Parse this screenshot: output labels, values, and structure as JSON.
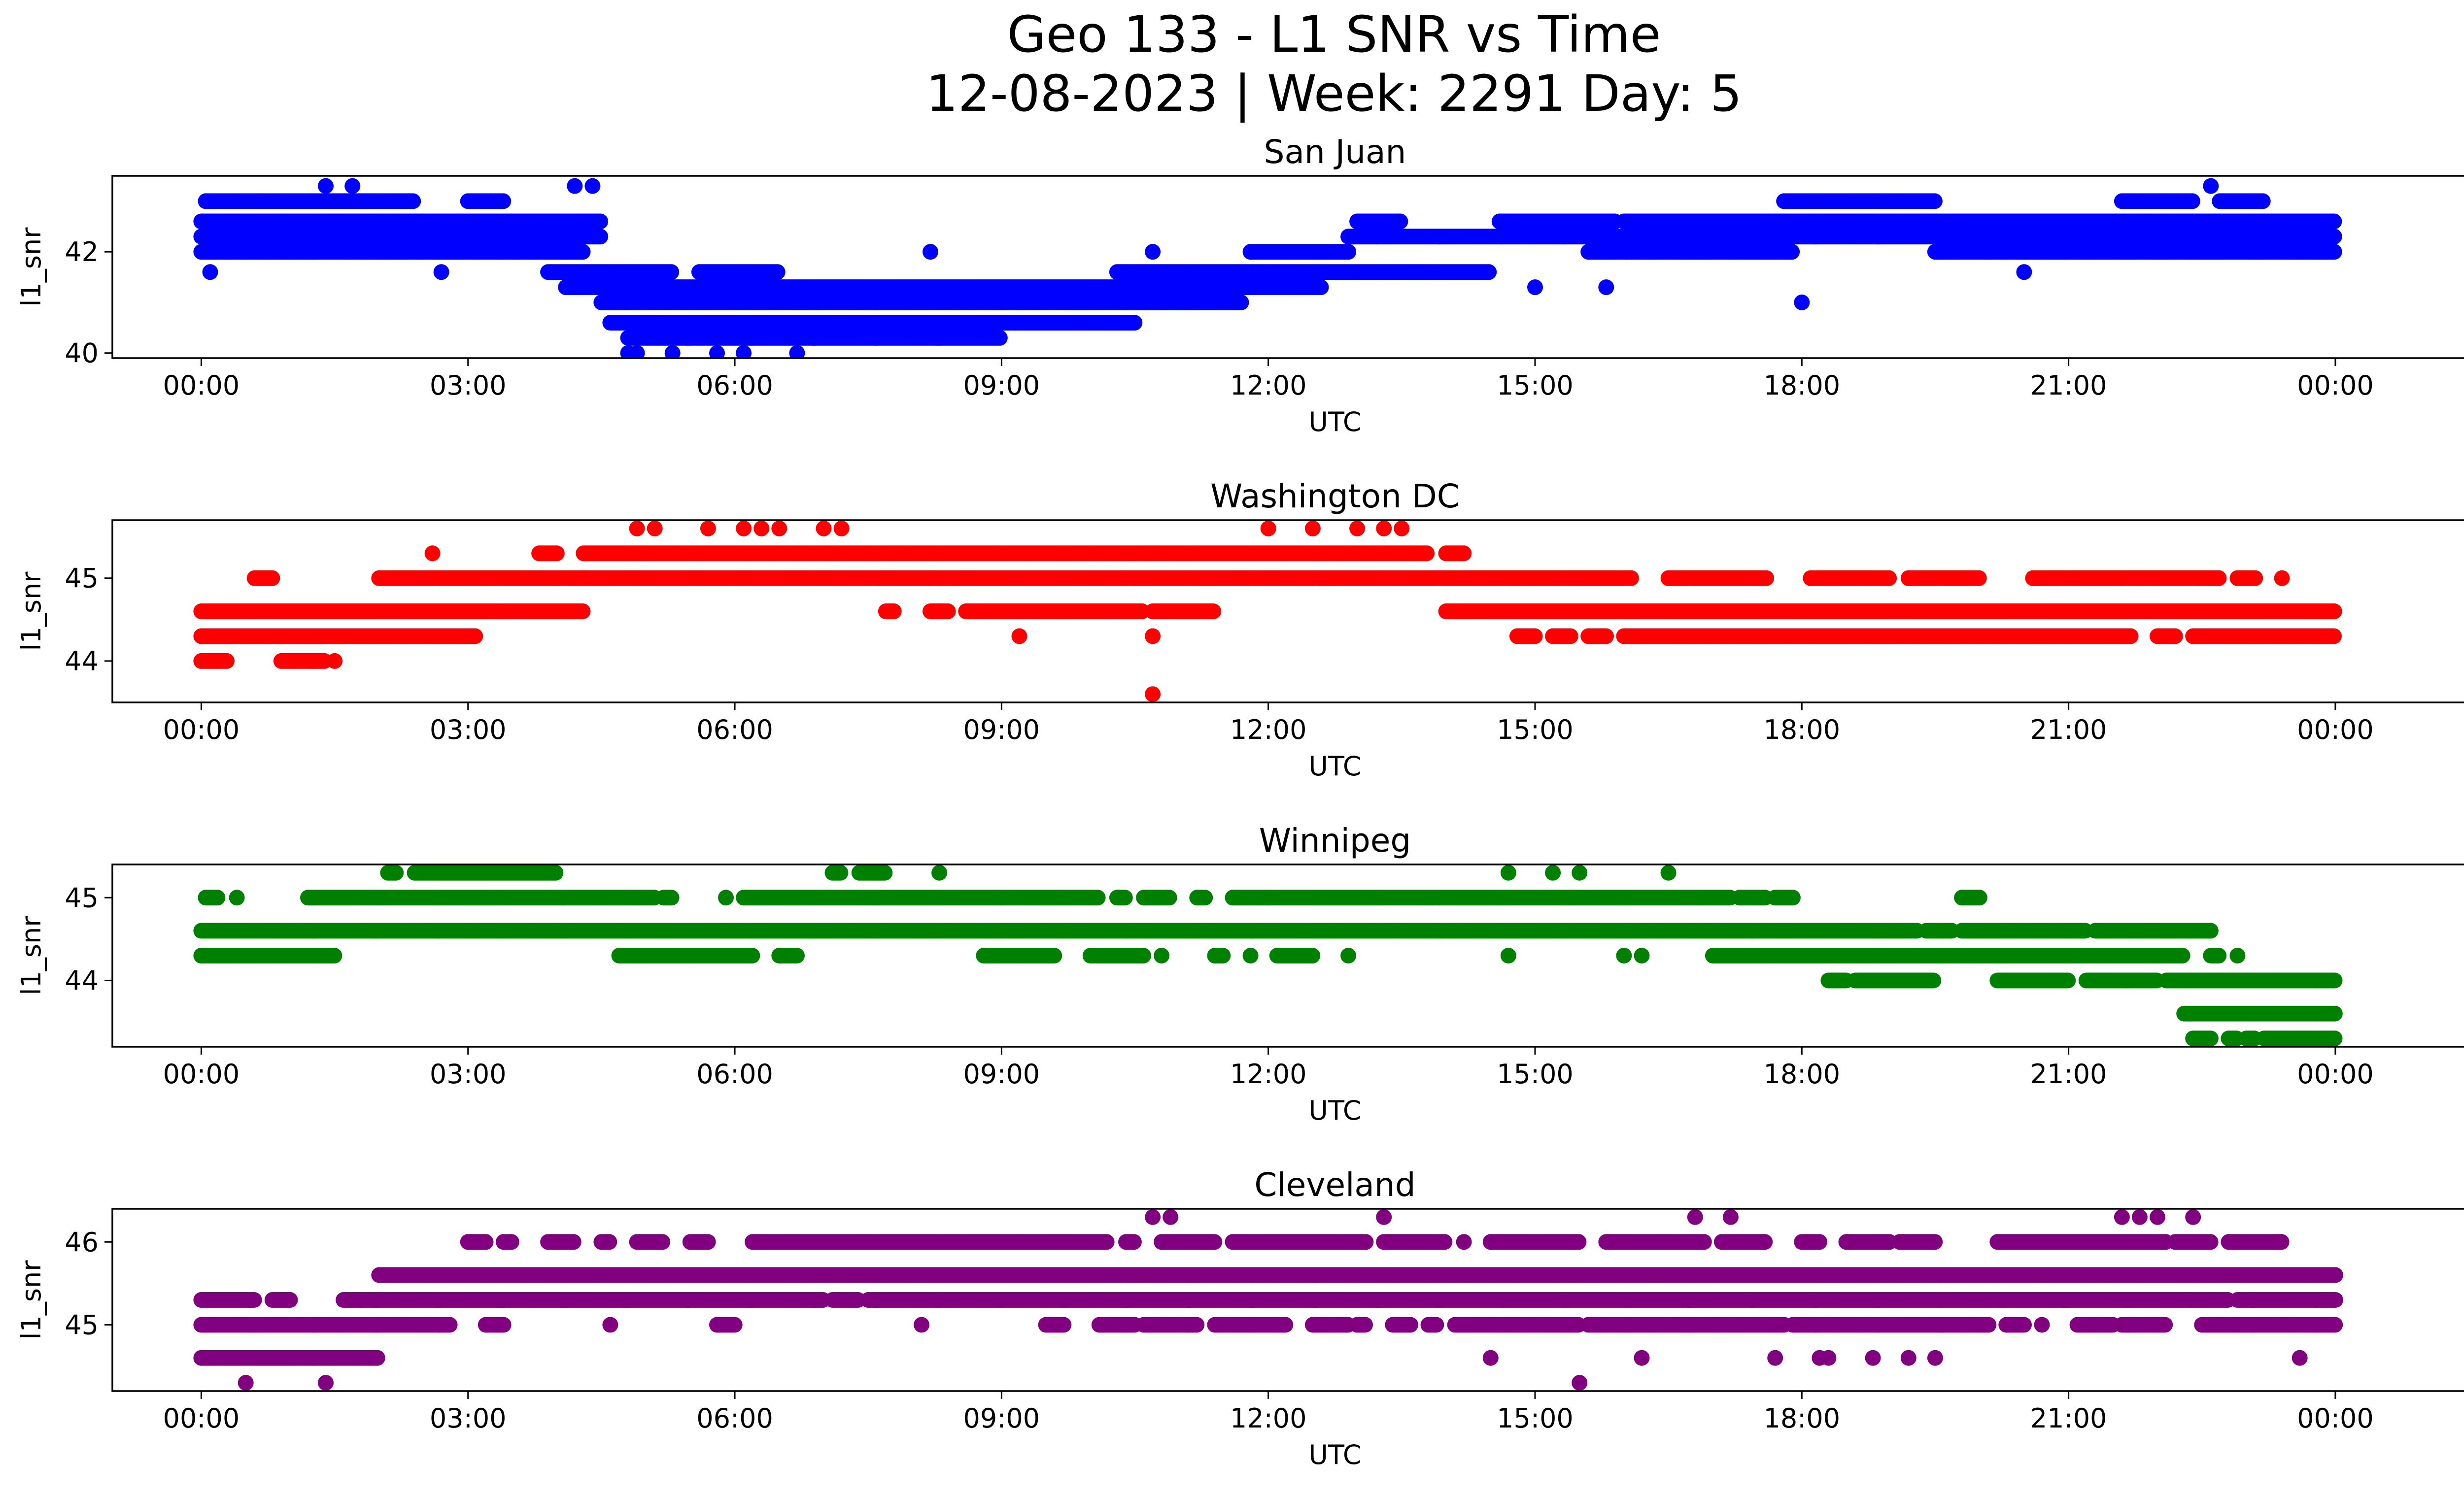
{
  "figure": {
    "title_line1": "Geo 133 - L1 SNR vs Time",
    "title_line2": "12-08-2023 | Week: 2291 Day: 5"
  },
  "chart_data": [
    {
      "type": "scatter",
      "title": "San Juan",
      "xlabel": "UTC",
      "ylabel": "l1_snr",
      "color": "#0000ff",
      "xlim": [
        "23:00",
        "02:30"
      ],
      "xticks": [
        "00:00",
        "03:00",
        "06:00",
        "09:00",
        "12:00",
        "15:00",
        "18:00",
        "21:00",
        "00:00"
      ],
      "ylim": [
        39.9,
        43.5
      ],
      "yticks": [
        40,
        42
      ],
      "x_unit": "hours UTC",
      "level_segments": [
        {
          "y": 43.0,
          "segments": [
            [
              0.05,
              2.4
            ],
            [
              3.0,
              3.4
            ],
            [
              17.8,
              19.5
            ],
            [
              21.6,
              22.4
            ],
            [
              22.7,
              23.2
            ]
          ]
        },
        {
          "y": 42.6,
          "segments": [
            [
              0.0,
              4.5
            ],
            [
              13.0,
              13.5
            ],
            [
              14.6,
              15.9
            ],
            [
              16.0,
              24.0
            ]
          ]
        },
        {
          "y": 42.3,
          "segments": [
            [
              0.0,
              4.5
            ],
            [
              12.9,
              24.0
            ]
          ]
        },
        {
          "y": 42.0,
          "segments": [
            [
              0.0,
              4.3
            ],
            [
              11.8,
              12.9
            ],
            [
              15.6,
              17.9
            ],
            [
              19.5,
              24.0
            ]
          ]
        },
        {
          "y": 41.6,
          "segments": [
            [
              3.9,
              5.3
            ],
            [
              5.6,
              6.5
            ],
            [
              10.3,
              14.5
            ]
          ]
        },
        {
          "y": 41.3,
          "segments": [
            [
              4.1,
              12.6
            ]
          ]
        },
        {
          "y": 41.0,
          "segments": [
            [
              4.5,
              11.7
            ]
          ]
        },
        {
          "y": 40.6,
          "segments": [
            [
              4.6,
              10.5
            ]
          ]
        },
        {
          "y": 40.3,
          "segments": [
            [
              4.8,
              9.0
            ]
          ]
        }
      ],
      "isolated_points": [
        {
          "x": 1.4,
          "y": 43.3
        },
        {
          "x": 1.7,
          "y": 43.3
        },
        {
          "x": 4.2,
          "y": 43.3
        },
        {
          "x": 4.4,
          "y": 43.3
        },
        {
          "x": 22.6,
          "y": 43.3
        },
        {
          "x": 0.1,
          "y": 41.6
        },
        {
          "x": 2.7,
          "y": 41.6
        },
        {
          "x": 15.0,
          "y": 41.3
        },
        {
          "x": 15.8,
          "y": 41.3
        },
        {
          "x": 18.0,
          "y": 41.0
        },
        {
          "x": 20.5,
          "y": 41.6
        },
        {
          "x": 8.2,
          "y": 42.0
        },
        {
          "x": 10.7,
          "y": 42.0
        },
        {
          "x": 4.8,
          "y": 40.0
        },
        {
          "x": 4.9,
          "y": 40.0
        },
        {
          "x": 5.3,
          "y": 40.0
        },
        {
          "x": 5.8,
          "y": 40.0
        },
        {
          "x": 6.1,
          "y": 40.0
        },
        {
          "x": 6.7,
          "y": 40.0
        }
      ]
    },
    {
      "type": "scatter",
      "title": "Washington DC",
      "xlabel": "UTC",
      "ylabel": "l1_snr",
      "color": "#ff0000",
      "xlim": [
        "23:00",
        "02:30"
      ],
      "xticks": [
        "00:00",
        "03:00",
        "06:00",
        "09:00",
        "12:00",
        "15:00",
        "18:00",
        "21:00",
        "00:00"
      ],
      "ylim": [
        43.5,
        45.7
      ],
      "yticks": [
        44,
        45
      ],
      "x_unit": "hours UTC",
      "level_segments": [
        {
          "y": 45.3,
          "segments": [
            [
              3.8,
              4.0
            ],
            [
              4.3,
              13.8
            ],
            [
              14.0,
              14.2
            ]
          ]
        },
        {
          "y": 45.0,
          "segments": [
            [
              0.6,
              0.8
            ],
            [
              2.0,
              16.1
            ],
            [
              16.5,
              17.6
            ],
            [
              18.1,
              19.0
            ],
            [
              19.2,
              20.0
            ],
            [
              20.6,
              22.7
            ],
            [
              22.9,
              23.1
            ]
          ]
        },
        {
          "y": 44.6,
          "segments": [
            [
              0.0,
              4.3
            ],
            [
              7.7,
              7.8
            ],
            [
              8.2,
              8.4
            ],
            [
              8.6,
              10.6
            ],
            [
              10.7,
              11.4
            ],
            [
              14.0,
              24.0
            ]
          ]
        },
        {
          "y": 44.3,
          "segments": [
            [
              0.0,
              3.1
            ],
            [
              14.8,
              15.0
            ],
            [
              15.2,
              15.4
            ],
            [
              15.6,
              15.8
            ],
            [
              16.0,
              21.7
            ],
            [
              22.0,
              22.2
            ],
            [
              22.4,
              24.0
            ]
          ]
        },
        {
          "y": 44.0,
          "segments": [
            [
              0.0,
              0.3
            ],
            [
              0.9,
              1.4
            ],
            [
              1.5,
              1.5
            ]
          ]
        }
      ],
      "isolated_points": [
        {
          "x": 2.6,
          "y": 45.3
        },
        {
          "x": 4.9,
          "y": 45.6
        },
        {
          "x": 5.1,
          "y": 45.6
        },
        {
          "x": 5.7,
          "y": 45.6
        },
        {
          "x": 6.1,
          "y": 45.6
        },
        {
          "x": 6.3,
          "y": 45.6
        },
        {
          "x": 6.5,
          "y": 45.6
        },
        {
          "x": 7.0,
          "y": 45.6
        },
        {
          "x": 7.2,
          "y": 45.6
        },
        {
          "x": 12.0,
          "y": 45.6
        },
        {
          "x": 12.5,
          "y": 45.6
        },
        {
          "x": 13.0,
          "y": 45.6
        },
        {
          "x": 13.3,
          "y": 45.6
        },
        {
          "x": 13.5,
          "y": 45.6
        },
        {
          "x": 9.2,
          "y": 44.3
        },
        {
          "x": 10.7,
          "y": 44.3
        },
        {
          "x": 10.7,
          "y": 43.6
        },
        {
          "x": 23.4,
          "y": 45.0
        }
      ]
    },
    {
      "type": "scatter",
      "title": "Winnipeg",
      "xlabel": "UTC",
      "ylabel": "l1_snr",
      "color": "#008000",
      "xlim": [
        "23:00",
        "02:30"
      ],
      "xticks": [
        "00:00",
        "03:00",
        "06:00",
        "09:00",
        "12:00",
        "15:00",
        "18:00",
        "21:00",
        "00:00"
      ],
      "ylim": [
        43.2,
        45.4
      ],
      "yticks": [
        44,
        45
      ],
      "x_unit": "hours UTC",
      "level_segments": [
        {
          "y": 45.3,
          "segments": [
            [
              2.1,
              2.2
            ],
            [
              2.4,
              4.0
            ],
            [
              7.1,
              7.2
            ],
            [
              7.4,
              7.7
            ]
          ]
        },
        {
          "y": 45.0,
          "segments": [
            [
              0.05,
              0.2
            ],
            [
              0.4,
              0.4
            ],
            [
              1.2,
              5.1
            ],
            [
              5.2,
              5.3
            ],
            [
              5.9,
              5.9
            ],
            [
              6.1,
              10.1
            ],
            [
              10.3,
              10.4
            ],
            [
              10.6,
              10.9
            ],
            [
              11.2,
              11.3
            ],
            [
              11.6,
              12.0
            ],
            [
              12.0,
              17.2
            ],
            [
              17.3,
              17.6
            ],
            [
              17.7,
              17.9
            ],
            [
              19.8,
              20.0
            ]
          ]
        },
        {
          "y": 44.6,
          "segments": [
            [
              0.0,
              19.3
            ],
            [
              19.4,
              19.7
            ],
            [
              19.8,
              21.2
            ],
            [
              21.3,
              22.6
            ]
          ]
        },
        {
          "y": 44.3,
          "segments": [
            [
              0.0,
              1.5
            ],
            [
              4.7,
              6.2
            ],
            [
              6.5,
              6.7
            ],
            [
              8.8,
              9.6
            ],
            [
              10.0,
              10.6
            ],
            [
              10.8,
              10.8
            ],
            [
              11.4,
              11.5
            ],
            [
              12.1,
              12.5
            ],
            [
              17.0,
              22.3
            ],
            [
              22.6,
              22.7
            ]
          ]
        },
        {
          "y": 44.0,
          "segments": [
            [
              18.3,
              18.5
            ],
            [
              18.6,
              19.5
            ],
            [
              20.2,
              21.0
            ],
            [
              21.2,
              22.0
            ],
            [
              22.1,
              24.0
            ]
          ]
        },
        {
          "y": 43.6,
          "segments": [
            [
              22.3,
              24.0
            ]
          ]
        },
        {
          "y": 43.3,
          "segments": [
            [
              22.4,
              22.6
            ],
            [
              22.8,
              22.9
            ],
            [
              23.0,
              23.1
            ],
            [
              23.2,
              24.0
            ]
          ]
        }
      ],
      "isolated_points": [
        {
          "x": 8.3,
          "y": 45.3
        },
        {
          "x": 14.7,
          "y": 45.3
        },
        {
          "x": 15.2,
          "y": 45.3
        },
        {
          "x": 15.5,
          "y": 45.3
        },
        {
          "x": 16.5,
          "y": 45.3
        },
        {
          "x": 11.8,
          "y": 44.3
        },
        {
          "x": 12.9,
          "y": 44.3
        },
        {
          "x": 14.7,
          "y": 44.3
        },
        {
          "x": 16.0,
          "y": 44.3
        },
        {
          "x": 16.2,
          "y": 44.3
        },
        {
          "x": 22.9,
          "y": 44.3
        }
      ]
    },
    {
      "type": "scatter",
      "title": "Cleveland",
      "xlabel": "UTC",
      "ylabel": "l1_snr",
      "color": "#800080",
      "xlim": [
        "23:00",
        "02:30"
      ],
      "xticks": [
        "00:00",
        "03:00",
        "06:00",
        "09:00",
        "12:00",
        "15:00",
        "18:00",
        "21:00",
        "00:00"
      ],
      "ylim": [
        44.2,
        46.4
      ],
      "yticks": [
        45,
        46
      ],
      "x_unit": "hours UTC",
      "level_segments": [
        {
          "y": 46.0,
          "segments": [
            [
              3.0,
              3.2
            ],
            [
              3.4,
              3.5
            ],
            [
              3.9,
              4.2
            ],
            [
              4.5,
              4.6
            ],
            [
              4.9,
              5.2
            ],
            [
              5.5,
              5.7
            ],
            [
              6.2,
              10.2
            ],
            [
              10.4,
              10.5
            ],
            [
              10.8,
              11.4
            ],
            [
              11.6,
              13.1
            ],
            [
              13.3,
              14.0
            ],
            [
              14.2,
              14.2
            ],
            [
              14.5,
              15.5
            ],
            [
              15.8,
              16.9
            ],
            [
              17.1,
              17.6
            ],
            [
              18.0,
              18.2
            ],
            [
              18.5,
              19.0
            ],
            [
              19.1,
              19.5
            ],
            [
              20.2,
              22.1
            ],
            [
              22.2,
              22.6
            ],
            [
              22.8,
              23.4
            ]
          ]
        },
        {
          "y": 45.6,
          "segments": [
            [
              2.0,
              24.0
            ]
          ]
        },
        {
          "y": 45.3,
          "segments": [
            [
              0.0,
              0.6
            ],
            [
              0.8,
              1.0
            ],
            [
              1.6,
              1.8
            ],
            [
              1.8,
              7.0
            ],
            [
              7.1,
              7.4
            ],
            [
              7.5,
              22.8
            ],
            [
              22.9,
              24.0
            ]
          ]
        },
        {
          "y": 45.0,
          "segments": [
            [
              0.0,
              2.8
            ],
            [
              3.2,
              3.4
            ],
            [
              4.6,
              4.6
            ],
            [
              5.8,
              6.0
            ],
            [
              9.5,
              9.7
            ],
            [
              10.1,
              10.5
            ],
            [
              10.6,
              11.2
            ],
            [
              11.4,
              12.2
            ],
            [
              12.5,
              12.9
            ],
            [
              13.0,
              13.1
            ],
            [
              13.4,
              13.6
            ],
            [
              13.8,
              13.9
            ],
            [
              14.1,
              15.5
            ],
            [
              15.6,
              17.8
            ],
            [
              17.9,
              20.1
            ],
            [
              20.3,
              20.5
            ],
            [
              20.7,
              20.7
            ],
            [
              21.1,
              21.5
            ],
            [
              21.6,
              22.1
            ],
            [
              22.5,
              24.0
            ]
          ]
        },
        {
          "y": 44.6,
          "segments": [
            [
              0.0,
              2.0
            ]
          ]
        }
      ],
      "isolated_points": [
        {
          "x": 10.7,
          "y": 46.3
        },
        {
          "x": 10.9,
          "y": 46.3
        },
        {
          "x": 13.3,
          "y": 46.3
        },
        {
          "x": 16.8,
          "y": 46.3
        },
        {
          "x": 17.2,
          "y": 46.3
        },
        {
          "x": 21.6,
          "y": 46.3
        },
        {
          "x": 21.8,
          "y": 46.3
        },
        {
          "x": 22.0,
          "y": 46.3
        },
        {
          "x": 22.4,
          "y": 46.3
        },
        {
          "x": 8.1,
          "y": 45.0
        },
        {
          "x": 0.5,
          "y": 44.3
        },
        {
          "x": 1.4,
          "y": 44.3
        },
        {
          "x": 15.5,
          "y": 44.3
        },
        {
          "x": 14.5,
          "y": 44.6
        },
        {
          "x": 16.2,
          "y": 44.6
        },
        {
          "x": 17.7,
          "y": 44.6
        },
        {
          "x": 18.2,
          "y": 44.6
        },
        {
          "x": 18.3,
          "y": 44.6
        },
        {
          "x": 18.8,
          "y": 44.6
        },
        {
          "x": 19.2,
          "y": 44.6
        },
        {
          "x": 19.5,
          "y": 44.6
        },
        {
          "x": 23.6,
          "y": 44.6
        }
      ]
    }
  ]
}
